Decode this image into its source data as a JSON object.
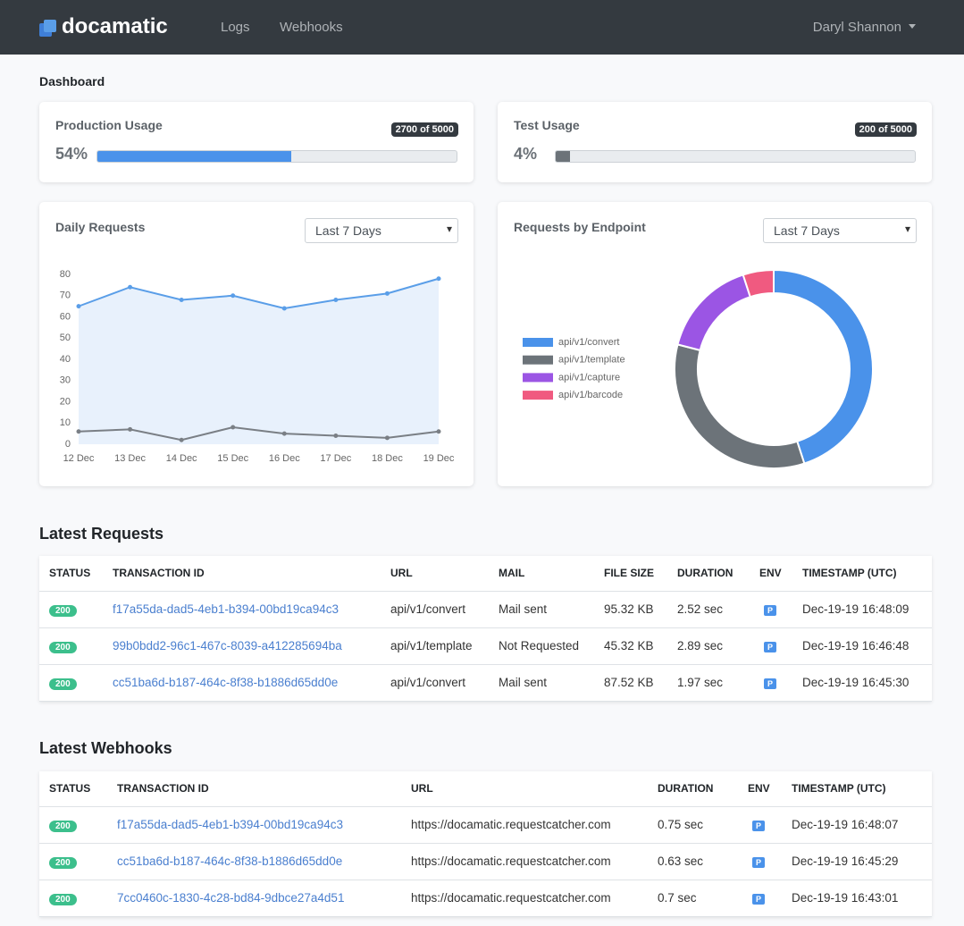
{
  "nav": {
    "brand": "docamatic",
    "links": [
      "Logs",
      "Webhooks"
    ],
    "user": "Daryl Shannon"
  },
  "page_title": "Dashboard",
  "usage": [
    {
      "title": "Production Usage",
      "percent": {
        "value": 54,
        "label": "54%"
      },
      "badge": "2700 of 5000"
    },
    {
      "title": "Test Usage",
      "percent": {
        "value": 4,
        "label": "4%"
      },
      "badge": "200 of 5000"
    }
  ],
  "filters": [
    "Last 7 Days",
    "Last 7 Days"
  ],
  "chart_data": [
    {
      "type": "line",
      "title": "Daily Requests",
      "categories": [
        "12 Dec",
        "13 Dec",
        "14 Dec",
        "15 Dec",
        "16 Dec",
        "17 Dec",
        "18 Dec",
        "19 Dec"
      ],
      "series": [
        {
          "color": "#5a9ee8",
          "fill_color": "#e8f1fc",
          "values": [
            65,
            74,
            68,
            70,
            64,
            68,
            71,
            78
          ]
        },
        {
          "color": "#7a7f85",
          "values": [
            6,
            7,
            2,
            8,
            5,
            4,
            3,
            6
          ]
        }
      ],
      "ylim": [
        0,
        80
      ],
      "yticks": [
        0,
        10,
        20,
        30,
        40,
        50,
        60,
        70,
        80
      ],
      "grid": false
    },
    {
      "type": "doughnut",
      "title": "Requests by Endpoint",
      "categories": [
        "api/v1/convert",
        "api/v1/template",
        "api/v1/capture",
        "api/v1/barcode"
      ],
      "values": [
        45,
        34,
        16,
        5
      ],
      "colors": [
        "#4a92ea",
        "#6c7379",
        "#9b55e4",
        "#f05a80"
      ],
      "legend": "left"
    }
  ],
  "latest_requests": {
    "title": "Latest Requests",
    "columns": [
      "STATUS",
      "TRANSACTION ID",
      "URL",
      "MAIL",
      "FILE SIZE",
      "DURATION",
      "ENV",
      "TIMESTAMP (UTC)"
    ],
    "rows": [
      [
        "200",
        "f17a55da-dad5-4eb1-b394-00bd19ca94c3",
        "api/v1/convert",
        "Mail sent",
        "95.32 KB",
        "2.52 sec",
        "P",
        "Dec-19-19 16:48:09"
      ],
      [
        "200",
        "99b0bdd2-96c1-467c-8039-a412285694ba",
        "api/v1/template",
        "Not Requested",
        "45.32 KB",
        "2.89 sec",
        "P",
        "Dec-19-19 16:46:48"
      ],
      [
        "200",
        "cc51ba6d-b187-464c-8f38-b1886d65dd0e",
        "api/v1/convert",
        "Mail sent",
        "87.52 KB",
        "1.97 sec",
        "P",
        "Dec-19-19 16:45:30"
      ]
    ]
  },
  "latest_webhooks": {
    "title": "Latest Webhooks",
    "columns": [
      "STATUS",
      "TRANSACTION ID",
      "URL",
      "DURATION",
      "ENV",
      "TIMESTAMP (UTC)"
    ],
    "rows": [
      [
        "200",
        "f17a55da-dad5-4eb1-b394-00bd19ca94c3",
        "https://docamatic.requestcatcher.com",
        "0.75 sec",
        "P",
        "Dec-19-19 16:48:07"
      ],
      [
        "200",
        "cc51ba6d-b187-464c-8f38-b1886d65dd0e",
        "https://docamatic.requestcatcher.com",
        "0.63 sec",
        "P",
        "Dec-19-19 16:45:29"
      ],
      [
        "200",
        "7cc0460c-1830-4c28-bd84-9dbce27a4d51",
        "https://docamatic.requestcatcher.com",
        "0.7 sec",
        "P",
        "Dec-19-19 16:43:01"
      ]
    ]
  }
}
